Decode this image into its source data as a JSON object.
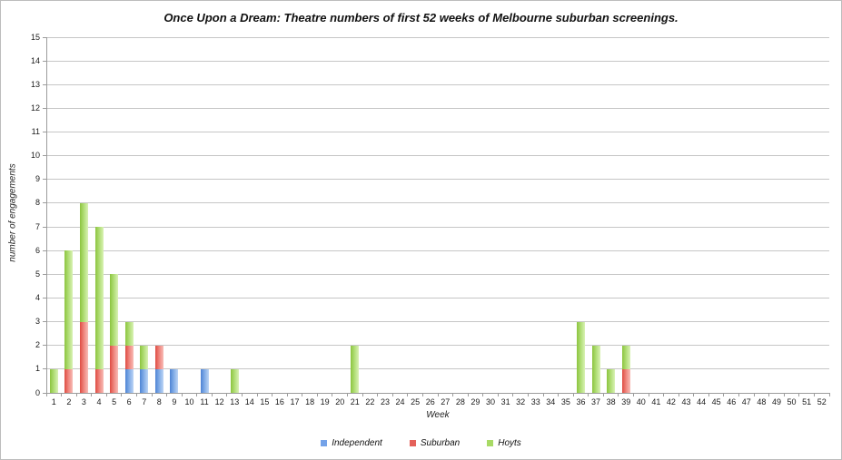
{
  "chart_data": {
    "type": "bar",
    "stacked": true,
    "title": "Once Upon a Dream: Theatre numbers of first 52 weeks of Melbourne suburban screenings.",
    "xlabel": "Week",
    "ylabel": "number of engagements",
    "ylim": [
      0,
      15
    ],
    "yticks": [
      0,
      1,
      2,
      3,
      4,
      5,
      6,
      7,
      8,
      9,
      10,
      11,
      12,
      13,
      14,
      15
    ],
    "categories": [
      1,
      2,
      3,
      4,
      5,
      6,
      7,
      8,
      9,
      10,
      11,
      12,
      13,
      14,
      15,
      16,
      17,
      18,
      19,
      20,
      21,
      22,
      23,
      24,
      25,
      26,
      27,
      28,
      29,
      30,
      31,
      32,
      33,
      34,
      35,
      36,
      37,
      38,
      39,
      40,
      41,
      42,
      43,
      44,
      45,
      46,
      47,
      48,
      49,
      50,
      51,
      52
    ],
    "grid": true,
    "legend_position": "bottom",
    "series": [
      {
        "name": "Independent",
        "key": "independent",
        "legend_color": "#74a2e8",
        "values": [
          0,
          0,
          0,
          0,
          0,
          1,
          1,
          1,
          1,
          0,
          1,
          0,
          0,
          0,
          0,
          0,
          0,
          0,
          0,
          0,
          0,
          0,
          0,
          0,
          0,
          0,
          0,
          0,
          0,
          0,
          0,
          0,
          0,
          0,
          0,
          0,
          0,
          0,
          0,
          0,
          0,
          0,
          0,
          0,
          0,
          0,
          0,
          0,
          0,
          0,
          0,
          0
        ]
      },
      {
        "name": "Suburban",
        "key": "suburban",
        "legend_color": "#e4615a",
        "values": [
          0,
          1,
          3,
          1,
          2,
          1,
          0,
          1,
          0,
          0,
          0,
          0,
          0,
          0,
          0,
          0,
          0,
          0,
          0,
          0,
          0,
          0,
          0,
          0,
          0,
          0,
          0,
          0,
          0,
          0,
          0,
          0,
          0,
          0,
          0,
          0,
          0,
          0,
          1,
          0,
          0,
          0,
          0,
          0,
          0,
          0,
          0,
          0,
          0,
          0,
          0,
          0
        ]
      },
      {
        "name": "Hoyts",
        "key": "hoyts",
        "legend_color": "#a8da65",
        "values": [
          1,
          5,
          5,
          6,
          3,
          1,
          1,
          0,
          0,
          0,
          0,
          0,
          1,
          0,
          0,
          0,
          0,
          0,
          0,
          0,
          2,
          0,
          0,
          0,
          0,
          0,
          0,
          0,
          0,
          0,
          0,
          0,
          0,
          0,
          0,
          3,
          2,
          1,
          1,
          0,
          0,
          0,
          0,
          0,
          0,
          0,
          0,
          0,
          0,
          0,
          0,
          0
        ]
      }
    ]
  }
}
